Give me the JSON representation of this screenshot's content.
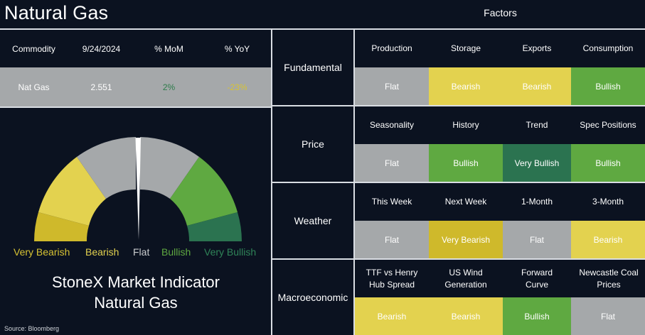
{
  "header": {
    "title": "Natural Gas",
    "factors_title": "Factors"
  },
  "colors": {
    "flat": "#a5a8aa",
    "bearish": "#e3d24f",
    "very_bearish": "#cfb92b",
    "bullish": "#5fa941",
    "very_bullish": "#2b7350",
    "background": "#0b1220",
    "mom_positive": "#2d7c4a",
    "yoy_negative": "#d7c333"
  },
  "commodity_table": {
    "headers": [
      "Commodity",
      "9/24/2024",
      "% MoM",
      "% YoY"
    ],
    "row": {
      "commodity": "Nat Gas",
      "price": "2.551",
      "mom": "2%",
      "yoy": "-23%"
    }
  },
  "gauge": {
    "labels": [
      "Very Bearish",
      "Bearish",
      "Flat",
      "Bullish",
      "Very Bullish"
    ],
    "needle_value": 0.48,
    "indicator_line1": "StoneX Market Indicator",
    "indicator_line2": "Natural Gas"
  },
  "factors": [
    {
      "category": "Fundamental",
      "items": [
        {
          "name": "Production",
          "value": "Flat",
          "color": "#a5a8aa"
        },
        {
          "name": "Storage",
          "value": "Bearish",
          "color": "#e3d24f"
        },
        {
          "name": "Exports",
          "value": "Bearish",
          "color": "#e3d24f"
        },
        {
          "name": "Consumption",
          "value": "Bullish",
          "color": "#5fa941"
        }
      ]
    },
    {
      "category": "Price",
      "items": [
        {
          "name": "Seasonality",
          "value": "Flat",
          "color": "#a5a8aa"
        },
        {
          "name": "History",
          "value": "Bullish",
          "color": "#5fa941"
        },
        {
          "name": "Trend",
          "value": "Very Bullish",
          "color": "#2b7350"
        },
        {
          "name": "Spec Positions",
          "value": "Bullish",
          "color": "#5fa941"
        }
      ]
    },
    {
      "category": "Weather",
      "items": [
        {
          "name": "This Week",
          "value": "Flat",
          "color": "#a5a8aa"
        },
        {
          "name": "Next Week",
          "value": "Very Bearish",
          "color": "#cfb92b"
        },
        {
          "name": "1-Month",
          "value": "Flat",
          "color": "#a5a8aa"
        },
        {
          "name": "3-Month",
          "value": "Bearish",
          "color": "#e3d24f"
        }
      ]
    },
    {
      "category": "Macroeconomic",
      "items": [
        {
          "name": "TTF vs Henry Hub Spread",
          "value": "Bearish",
          "color": "#e3d24f"
        },
        {
          "name": "US Wind Generation",
          "value": "Bearish",
          "color": "#e3d24f"
        },
        {
          "name": "Forward Curve",
          "value": "Bullish",
          "color": "#5fa941"
        },
        {
          "name": "Newcastle Coal Prices",
          "value": "Flat",
          "color": "#a5a8aa"
        }
      ]
    }
  ],
  "source": "Source: Bloomberg"
}
